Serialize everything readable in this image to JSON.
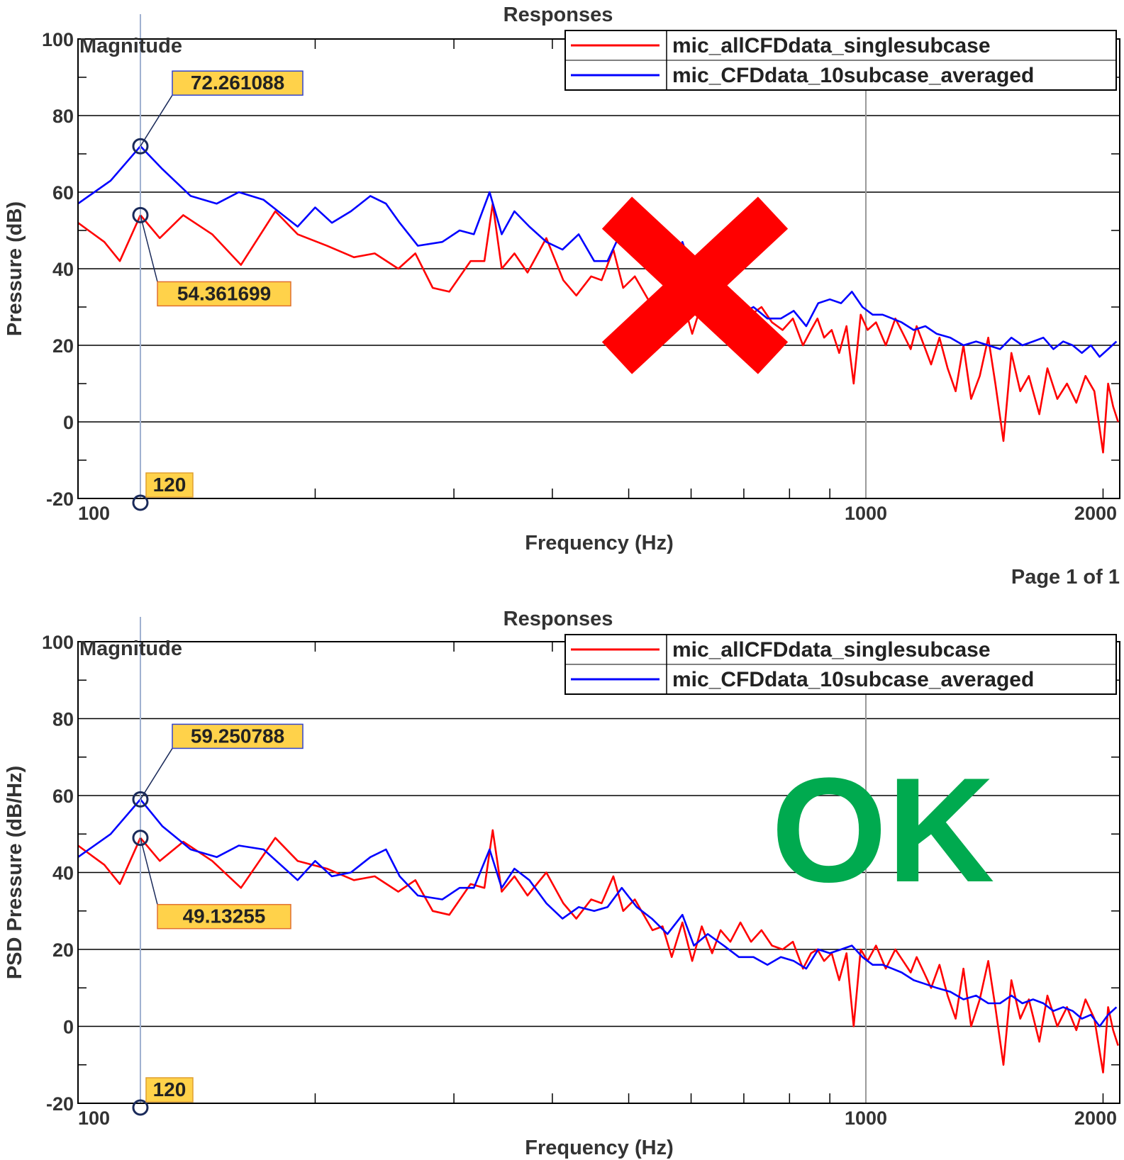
{
  "page_label": "Page 1 of 1",
  "chart_data": [
    {
      "type": "line",
      "title": "Responses",
      "xlabel": "Frequency (Hz)",
      "ylabel": "Pressure (dB)",
      "corner_label": "Magnitude",
      "x_scale": "log",
      "xlim": [
        100,
        2100
      ],
      "ylim": [
        -20,
        100
      ],
      "x_tick_labels": [
        "100",
        "1000",
        "2000"
      ],
      "y_tick_labels": [
        "100",
        "80",
        "60",
        "40",
        "20",
        "0",
        "-20"
      ],
      "grid": true,
      "legend_position": "top-right",
      "verdict_mark": "cross",
      "cursor": {
        "x": 120,
        "label": "120"
      },
      "annotations": [
        "72.261088",
        "54.361699"
      ],
      "series": [
        {
          "name": "mic_allCFDdata_singlesubcase",
          "color": "#FF0000",
          "x": [
            100,
            108,
            113,
            120,
            127,
            136,
            148,
            161,
            178,
            190,
            207,
            224,
            238,
            255,
            268,
            282,
            296,
            315,
            328,
            336,
            345,
            358,
            372,
            393,
            413,
            429,
            448,
            462,
            478,
            492,
            509,
            536,
            552,
            567,
            585,
            602,
            619,
            638,
            654,
            673,
            693,
            715,
            737,
            760,
            784,
            808,
            832,
            852,
            868,
            885,
            905,
            925,
            945,
            965,
            985,
            1005,
            1030,
            1060,
            1090,
            1115,
            1140,
            1160,
            1185,
            1210,
            1240,
            1270,
            1300,
            1330,
            1360,
            1395,
            1430,
            1460,
            1495,
            1530,
            1570,
            1610,
            1660,
            1700,
            1750,
            1800,
            1850,
            1900,
            1950,
            2000,
            2030,
            2060,
            2090
          ],
          "y": [
            52,
            47,
            42,
            54,
            48,
            54,
            49,
            41,
            55,
            49,
            46,
            43,
            44,
            40,
            44,
            35,
            34,
            42,
            42,
            57,
            40,
            44,
            39,
            48,
            37,
            33,
            38,
            37,
            45,
            35,
            38,
            30,
            31,
            24,
            32,
            23,
            31,
            24,
            30,
            27,
            32,
            28,
            30,
            26,
            24,
            27,
            20,
            24,
            27,
            22,
            24,
            18,
            25,
            10,
            28,
            24,
            26,
            20,
            27,
            23,
            19,
            25,
            20,
            15,
            22,
            14,
            8,
            20,
            6,
            12,
            22,
            10,
            -5,
            18,
            8,
            12,
            2,
            14,
            6,
            10,
            5,
            12,
            8,
            -8,
            10,
            4,
            0
          ]
        },
        {
          "name": "mic_CFDdata_10subcase_averaged",
          "color": "#0000FF",
          "x": [
            100,
            110,
            120,
            128,
            139,
            150,
            160,
            172,
            190,
            200,
            210,
            222,
            235,
            246,
            256,
            270,
            290,
            305,
            318,
            333,
            345,
            358,
            374,
            393,
            412,
            432,
            452,
            470,
            490,
            512,
            535,
            560,
            585,
            605,
            630,
            660,
            690,
            720,
            750,
            780,
            810,
            840,
            870,
            900,
            930,
            960,
            990,
            1020,
            1050,
            1080,
            1110,
            1150,
            1190,
            1230,
            1280,
            1330,
            1380,
            1430,
            1480,
            1530,
            1580,
            1630,
            1680,
            1730,
            1780,
            1830,
            1880,
            1930,
            1980,
            2030,
            2080
          ],
          "y": [
            57,
            63,
            72,
            66,
            59,
            57,
            60,
            58,
            51,
            56,
            52,
            55,
            59,
            57,
            52,
            46,
            47,
            50,
            49,
            60,
            49,
            55,
            51,
            47,
            45,
            49,
            42,
            42,
            50,
            45,
            44,
            36,
            47,
            38,
            35,
            31,
            28,
            30,
            27,
            27,
            29,
            25,
            31,
            32,
            31,
            34,
            30,
            28,
            28,
            27,
            26,
            24,
            25,
            23,
            22,
            20,
            21,
            20,
            19,
            22,
            20,
            21,
            22,
            19,
            21,
            20,
            18,
            20,
            17,
            19,
            21
          ]
        }
      ]
    },
    {
      "type": "line",
      "title": "Responses",
      "xlabel": "Frequency (Hz)",
      "ylabel": "PSD Pressure (dB/Hz)",
      "corner_label": "Magnitude",
      "x_scale": "log",
      "xlim": [
        100,
        2100
      ],
      "ylim": [
        -20,
        100
      ],
      "x_tick_labels": [
        "100",
        "1000",
        "2000"
      ],
      "y_tick_labels": [
        "100",
        "80",
        "60",
        "40",
        "20",
        "0",
        "-20"
      ],
      "grid": true,
      "legend_position": "top-right",
      "verdict_text": "OK",
      "cursor": {
        "x": 120,
        "label": "120"
      },
      "annotations": [
        "59.250788",
        "49.13255"
      ],
      "series": [
        {
          "name": "mic_allCFDdata_singlesubcase",
          "color": "#FF0000",
          "x": [
            100,
            108,
            113,
            120,
            127,
            136,
            148,
            161,
            178,
            190,
            207,
            224,
            238,
            255,
            268,
            282,
            296,
            315,
            328,
            336,
            345,
            358,
            372,
            393,
            413,
            429,
            448,
            462,
            478,
            492,
            509,
            536,
            552,
            567,
            585,
            602,
            619,
            638,
            654,
            673,
            693,
            715,
            737,
            760,
            784,
            808,
            832,
            852,
            868,
            885,
            905,
            925,
            945,
            965,
            985,
            1005,
            1030,
            1060,
            1090,
            1115,
            1140,
            1160,
            1185,
            1210,
            1240,
            1270,
            1300,
            1330,
            1360,
            1395,
            1430,
            1460,
            1495,
            1530,
            1570,
            1610,
            1660,
            1700,
            1750,
            1800,
            1850,
            1900,
            1950,
            2000,
            2030,
            2060,
            2090
          ],
          "y": [
            47,
            42,
            37,
            49,
            43,
            48,
            43,
            36,
            49,
            43,
            41,
            38,
            39,
            35,
            38,
            30,
            29,
            37,
            36,
            51,
            35,
            39,
            34,
            40,
            32,
            28,
            33,
            32,
            39,
            30,
            33,
            25,
            26,
            18,
            27,
            17,
            26,
            19,
            25,
            22,
            27,
            22,
            25,
            21,
            20,
            22,
            15,
            19,
            20,
            17,
            19,
            12,
            19,
            0,
            20,
            17,
            21,
            15,
            20,
            17,
            14,
            18,
            14,
            10,
            16,
            8,
            2,
            15,
            0,
            7,
            17,
            5,
            -10,
            12,
            2,
            7,
            -4,
            8,
            0,
            5,
            -1,
            7,
            2,
            -12,
            5,
            -1,
            -5
          ]
        },
        {
          "name": "mic_CFDdata_10subcase_averaged",
          "color": "#0000FF",
          "x": [
            100,
            110,
            120,
            128,
            139,
            150,
            160,
            172,
            190,
            200,
            210,
            222,
            235,
            246,
            256,
            270,
            290,
            305,
            318,
            333,
            345,
            358,
            374,
            393,
            412,
            432,
            452,
            470,
            490,
            512,
            535,
            560,
            585,
            605,
            630,
            660,
            690,
            720,
            750,
            780,
            810,
            840,
            870,
            900,
            930,
            960,
            990,
            1020,
            1050,
            1080,
            1110,
            1150,
            1190,
            1230,
            1280,
            1330,
            1380,
            1430,
            1480,
            1530,
            1580,
            1630,
            1680,
            1730,
            1780,
            1830,
            1880,
            1930,
            1980,
            2030,
            2080
          ],
          "y": [
            44,
            50,
            59,
            52,
            46,
            44,
            47,
            46,
            38,
            43,
            39,
            40,
            44,
            46,
            39,
            34,
            33,
            36,
            36,
            46,
            36,
            41,
            38,
            32,
            28,
            31,
            30,
            31,
            36,
            31,
            28,
            24,
            29,
            21,
            24,
            21,
            18,
            18,
            16,
            18,
            17,
            15,
            20,
            19,
            20,
            21,
            18,
            16,
            16,
            15,
            14,
            12,
            11,
            10,
            9,
            7,
            8,
            6,
            6,
            8,
            6,
            7,
            6,
            4,
            5,
            4,
            2,
            3,
            0,
            3,
            5
          ]
        }
      ]
    }
  ]
}
